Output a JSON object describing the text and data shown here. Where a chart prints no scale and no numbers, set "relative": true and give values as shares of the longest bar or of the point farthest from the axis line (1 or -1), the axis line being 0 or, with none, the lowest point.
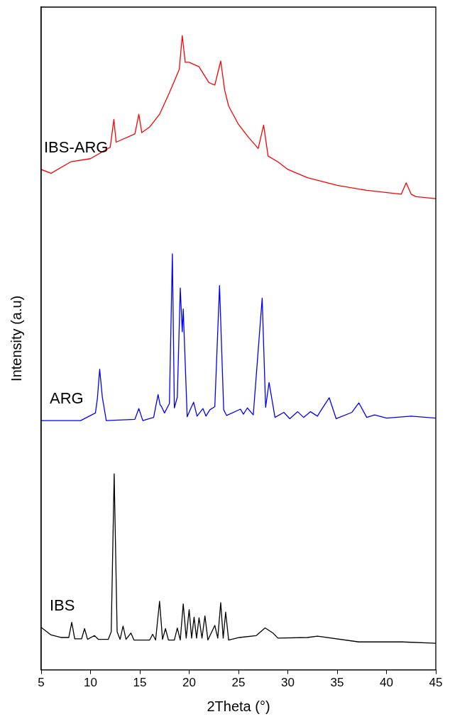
{
  "chart_data": {
    "type": "line",
    "relative": true,
    "xlabel": "2Theta (°)",
    "ylabel": "Intensity (a.u)",
    "xlim": [
      5,
      45
    ],
    "xticks": [
      5,
      10,
      15,
      20,
      25,
      30,
      35,
      40,
      45
    ],
    "grid": false,
    "legend": false,
    "marker": "none",
    "line_style": "solid",
    "series": [
      {
        "name": "IBS-ARG",
        "color": "#ff0000",
        "x": [
          5,
          6,
          8,
          10,
          12,
          12.37,
          12.6,
          14.5,
          14.9,
          15.2,
          16,
          17,
          18,
          19,
          19.3,
          19.6,
          20,
          21,
          22,
          22.6,
          23.2,
          23.6,
          24,
          25,
          26,
          27,
          27.55,
          28,
          29,
          30,
          32,
          35,
          38,
          41.5,
          42,
          42.5,
          43,
          45
        ],
        "values": [
          0.789,
          0.783,
          0.801,
          0.806,
          0.824,
          0.868,
          0.832,
          0.845,
          0.876,
          0.847,
          0.856,
          0.876,
          0.91,
          0.947,
          1.0,
          0.958,
          0.958,
          0.951,
          0.926,
          0.922,
          0.96,
          0.914,
          0.889,
          0.86,
          0.84,
          0.822,
          0.859,
          0.81,
          0.801,
          0.789,
          0.776,
          0.764,
          0.756,
          0.75,
          0.768,
          0.75,
          0.746,
          0.743
        ]
      },
      {
        "name": "ARG",
        "color": "#0000ff",
        "x": [
          5,
          9,
          10.5,
          10.7,
          10.93,
          11.2,
          11.6,
          14.5,
          14.9,
          15.3,
          16.4,
          16.85,
          17.05,
          17.2,
          17.5,
          18.0,
          18.3,
          18.5,
          18.8,
          19.1,
          19.3,
          19.4,
          19.8,
          20.1,
          20.45,
          20.8,
          21.4,
          21.7,
          22.1,
          22.6,
          23.08,
          23.5,
          23.8,
          25.2,
          25.5,
          25.9,
          26.5,
          27.4,
          27.75,
          28.1,
          28.7,
          29.6,
          30.2,
          31.0,
          31.6,
          32.3,
          33.0,
          33.4,
          34.2,
          34.9,
          36.5,
          37.2,
          38.0,
          38.8,
          40,
          42.5,
          45
        ],
        "values": [
          0.393,
          0.393,
          0.405,
          0.428,
          0.474,
          0.43,
          0.393,
          0.395,
          0.412,
          0.393,
          0.398,
          0.434,
          0.418,
          0.415,
          0.405,
          0.42,
          0.656,
          0.413,
          0.43,
          0.602,
          0.533,
          0.569,
          0.399,
          0.41,
          0.422,
          0.4,
          0.412,
          0.4,
          0.41,
          0.415,
          0.606,
          0.41,
          0.401,
          0.411,
          0.403,
          0.413,
          0.402,
          0.586,
          0.414,
          0.453,
          0.398,
          0.406,
          0.396,
          0.407,
          0.398,
          0.407,
          0.4,
          0.41,
          0.429,
          0.396,
          0.406,
          0.421,
          0.398,
          0.402,
          0.397,
          0.4,
          0.397
        ]
      },
      {
        "name": "IBS",
        "color": "#000000",
        "x": [
          5,
          6,
          7,
          7.8,
          8.1,
          8.4,
          9.1,
          9.4,
          9.7,
          10.4,
          10.8,
          11.8,
          12.1,
          12.4,
          12.7,
          13.0,
          13.3,
          13.6,
          14.1,
          14.4,
          16.0,
          16.3,
          16.6,
          17.0,
          17.3,
          17.6,
          17.9,
          18.5,
          18.8,
          19.1,
          19.4,
          19.7,
          20.0,
          20.25,
          20.5,
          20.75,
          21.0,
          21.3,
          21.6,
          21.9,
          22.6,
          22.9,
          23.2,
          23.45,
          23.7,
          24.0,
          25.1,
          26.8,
          27.7,
          28.5,
          29.0,
          32.0,
          33.0,
          37.2,
          41.6,
          45
        ],
        "values": [
          0.067,
          0.055,
          0.051,
          0.051,
          0.075,
          0.049,
          0.049,
          0.065,
          0.048,
          0.054,
          0.048,
          0.048,
          0.06,
          0.309,
          0.06,
          0.048,
          0.069,
          0.048,
          0.058,
          0.047,
          0.047,
          0.056,
          0.047,
          0.108,
          0.048,
          0.065,
          0.047,
          0.047,
          0.066,
          0.047,
          0.104,
          0.05,
          0.095,
          0.05,
          0.083,
          0.05,
          0.082,
          0.05,
          0.085,
          0.047,
          0.07,
          0.05,
          0.106,
          0.05,
          0.091,
          0.047,
          0.051,
          0.054,
          0.066,
          0.058,
          0.05,
          0.051,
          0.053,
          0.044,
          0.044,
          0.042
        ]
      }
    ]
  }
}
